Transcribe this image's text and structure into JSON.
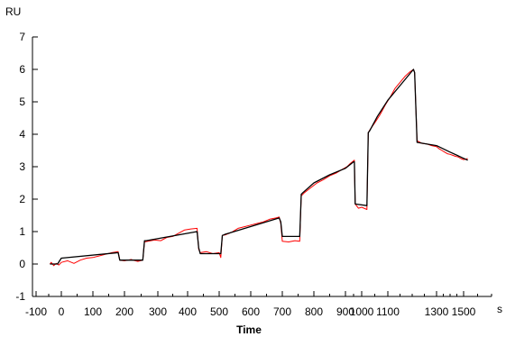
{
  "chart_data": {
    "type": "line",
    "title": "",
    "xlabel": "Time",
    "ylabel": "RU",
    "x_unit": "s",
    "xlim": [
      -100,
      1600
    ],
    "ylim": [
      -1,
      7
    ],
    "x_ticks": [
      -100,
      0,
      100,
      200,
      300,
      400,
      500,
      600,
      700,
      800,
      900,
      1000,
      1100,
      1300,
      1500
    ],
    "y_ticks": [
      -1,
      0,
      1,
      2,
      3,
      4,
      5,
      6,
      7
    ],
    "grid": false,
    "legend": "none",
    "colors": {
      "fit": "#000000",
      "measured": "#ff0000",
      "axes": "#000000"
    },
    "series": [
      {
        "role": "fit",
        "x": [
          -45,
          -15,
          0,
          180,
          185,
          255,
          260,
          265,
          430,
          435,
          440,
          505,
          510,
          520,
          690,
          695,
          700,
          755,
          760,
          765,
          800,
          850,
          900,
          950,
          955,
          960,
          1020,
          1025,
          1030,
          1060,
          1100,
          1150,
          1205,
          1210,
          1220,
          1300,
          1400,
          1515
        ],
        "y": [
          0.0,
          0.0,
          0.18,
          0.35,
          0.12,
          0.12,
          0.72,
          0.72,
          1.0,
          0.5,
          0.32,
          0.32,
          0.88,
          0.92,
          1.42,
          1.3,
          0.85,
          0.85,
          2.15,
          2.2,
          2.5,
          2.75,
          2.95,
          3.15,
          3.15,
          1.85,
          1.8,
          4.05,
          4.1,
          4.55,
          5.05,
          5.5,
          6.0,
          5.9,
          3.75,
          3.65,
          3.45,
          3.2
        ]
      },
      {
        "role": "measured",
        "x": [
          -45,
          -40,
          -30,
          -20,
          -10,
          0,
          20,
          40,
          60,
          80,
          100,
          120,
          140,
          160,
          180,
          185,
          200,
          220,
          240,
          255,
          260,
          270,
          290,
          310,
          330,
          350,
          370,
          390,
          410,
          430,
          435,
          440,
          460,
          480,
          500,
          505,
          510,
          520,
          540,
          560,
          580,
          600,
          620,
          640,
          660,
          680,
          690,
          695,
          700,
          720,
          740,
          755,
          760,
          770,
          790,
          810,
          830,
          850,
          870,
          890,
          910,
          930,
          950,
          955,
          960,
          980,
          1000,
          1020,
          1025,
          1030,
          1050,
          1070,
          1090,
          1110,
          1130,
          1150,
          1170,
          1190,
          1205,
          1210,
          1220,
          1240,
          1260,
          1280,
          1300,
          1320,
          1340,
          1360,
          1380,
          1400,
          1420,
          1440,
          1460,
          1480,
          1500,
          1515
        ],
        "y": [
          0.0,
          0.05,
          -0.05,
          0.02,
          -0.03,
          0.05,
          0.1,
          0.02,
          0.12,
          0.18,
          0.2,
          0.25,
          0.3,
          0.35,
          0.38,
          0.12,
          0.1,
          0.14,
          0.08,
          0.12,
          0.68,
          0.7,
          0.74,
          0.72,
          0.82,
          0.85,
          0.95,
          1.05,
          1.08,
          1.1,
          0.45,
          0.35,
          0.38,
          0.32,
          0.35,
          0.2,
          0.88,
          0.9,
          0.98,
          1.1,
          1.15,
          1.2,
          1.25,
          1.3,
          1.38,
          1.42,
          1.45,
          1.25,
          0.7,
          0.68,
          0.72,
          0.7,
          2.1,
          2.2,
          2.35,
          2.5,
          2.6,
          2.72,
          2.8,
          2.92,
          3.0,
          3.1,
          3.18,
          3.2,
          1.85,
          1.72,
          1.75,
          1.68,
          4.05,
          4.12,
          4.35,
          4.6,
          4.9,
          5.15,
          5.42,
          5.6,
          5.78,
          5.92,
          6.0,
          5.9,
          3.8,
          3.72,
          3.7,
          3.65,
          3.62,
          3.55,
          3.5,
          3.45,
          3.4,
          3.38,
          3.35,
          3.32,
          3.3,
          3.25,
          3.22,
          3.25
        ]
      }
    ]
  }
}
